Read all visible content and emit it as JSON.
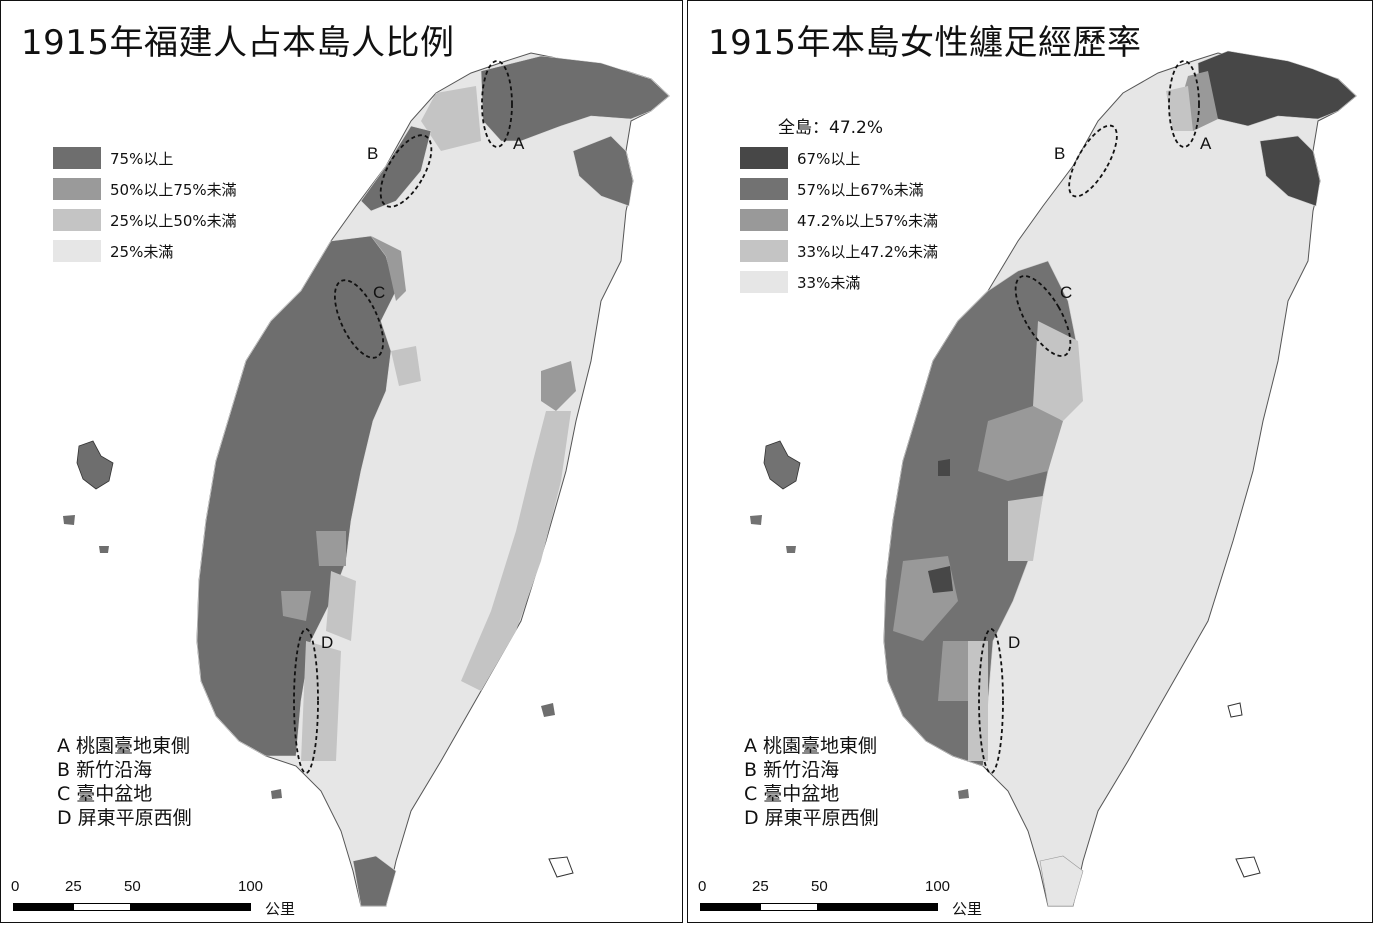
{
  "left": {
    "title": "1915年福建人占本島人比例",
    "legend": [
      {
        "label": "75%以上",
        "color": "#6e6e6e"
      },
      {
        "label": "50%以上75%未滿",
        "color": "#9a9a9a"
      },
      {
        "label": "25%以上50%未滿",
        "color": "#c4c4c4"
      },
      {
        "label": "25%未滿",
        "color": "#e6e6e6"
      }
    ],
    "region_letters": [
      "A",
      "B",
      "C",
      "D"
    ],
    "area_list": [
      "A 桃園臺地東側",
      "B 新竹沿海",
      "C 臺中盆地",
      "D 屏東平原西側"
    ]
  },
  "right": {
    "title": "1915年本島女性纏足經歷率",
    "overall": "全島：47.2%",
    "legend": [
      {
        "label": "67%以上",
        "color": "#474747"
      },
      {
        "label": "57%以上67%未滿",
        "color": "#727272"
      },
      {
        "label": "47.2%以上57%未滿",
        "color": "#999999"
      },
      {
        "label": "33%以上47.2%未滿",
        "color": "#c4c4c4"
      },
      {
        "label": "33%未滿",
        "color": "#e6e6e6"
      }
    ],
    "region_letters": [
      "A",
      "B",
      "C",
      "D"
    ],
    "area_list": [
      "A 桃園臺地東側",
      "B 新竹沿海",
      "C 臺中盆地",
      "D 屏東平原西側"
    ]
  },
  "scale_bar": {
    "ticks": [
      "0",
      "25",
      "50",
      "100"
    ],
    "unit": "公里"
  }
}
